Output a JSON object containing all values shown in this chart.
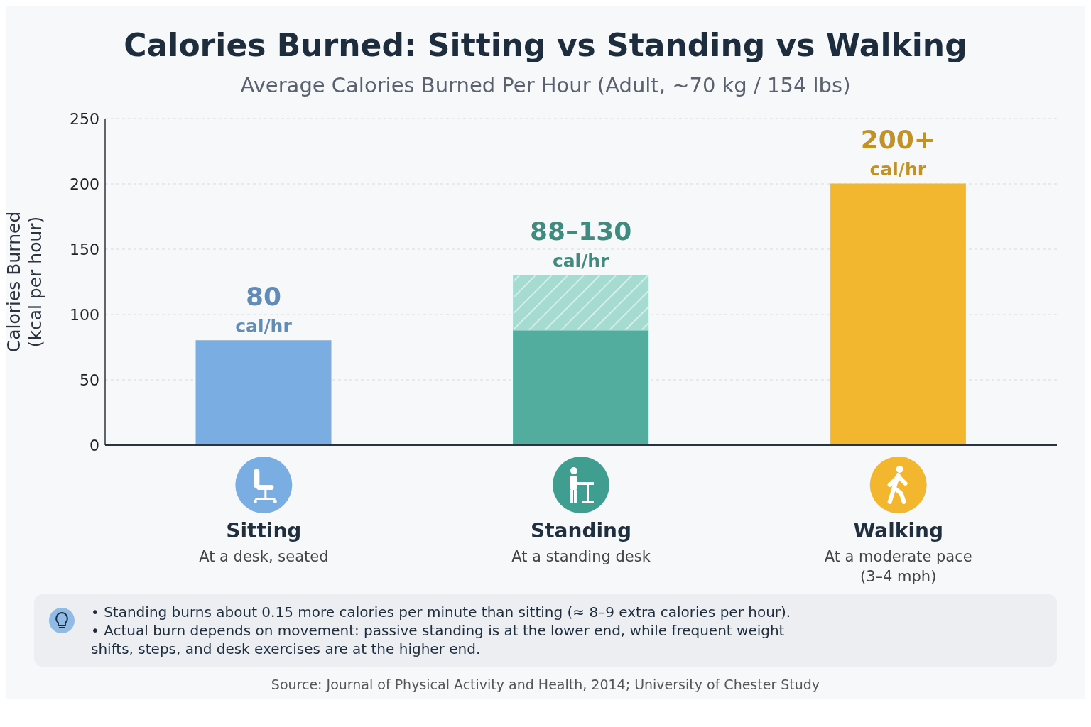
{
  "chart_data": {
    "type": "bar",
    "title": "Calories Burned: Sitting vs Standing vs Walking",
    "subtitle": "Average Calories Burned Per Hour (Adult, ~70 kg / 154 lbs)",
    "ylabel": "Calories Burned (kcal per hour)",
    "categories": [
      "Sitting",
      "Standing",
      "Walking"
    ],
    "stacked": true,
    "series": [
      {
        "colors": [
          "#7aaee3",
          "#52ad9f",
          "#f3b62f"
        ],
        "values": [
          80,
          88,
          200
        ],
        "value_labels": [
          "80 cal/hr",
          null,
          "200+ cal/hr"
        ]
      },
      {
        "colors": [
          null,
          "#a6dbd2",
          null
        ],
        "values": [
          null,
          42,
          null
        ],
        "value_labels": [
          null,
          "88–130 cal/hr",
          null
        ]
      }
    ],
    "ylim": [
      0,
      250
    ],
    "yticks": [
      0,
      50,
      100,
      150,
      200,
      250
    ],
    "grid": "y",
    "legend": false,
    "annotations": [
      "At a desk, seated",
      "At a standing desk",
      "At a moderate pace (3–4 mph)",
      "• Standing burns about 0.15 more calories per minute than sitting (≈ 8–9 extra calories per hour).",
      "• Actual burn depends on movement: passive standing is at the lower end, while frequent weight shifts, steps, and desk exercises are at the higher end.",
      "Source: Journal of Physical Activity and Health, 2014; University of Chester Study"
    ]
  }
}
